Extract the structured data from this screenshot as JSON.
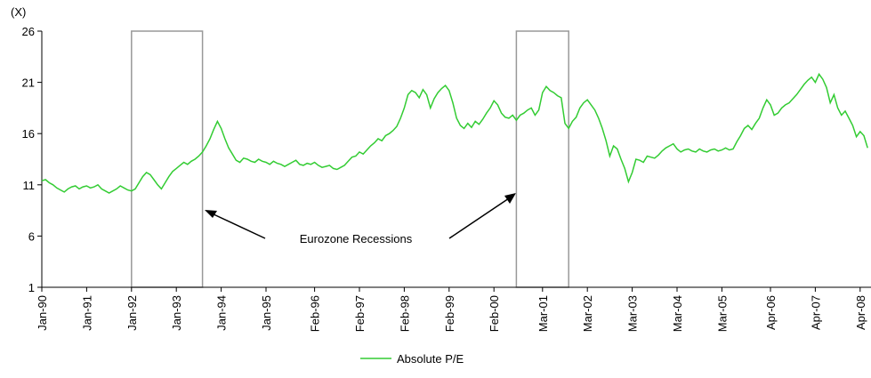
{
  "chart_data": {
    "type": "line",
    "y_label": "(X)",
    "annotation": "Eurozone Recessions",
    "x": [
      "Jan-90",
      "Feb-90",
      "Mar-90",
      "Apr-90",
      "May-90",
      "Jun-90",
      "Jul-90",
      "Aug-90",
      "Sep-90",
      "Oct-90",
      "Nov-90",
      "Dec-90",
      "Jan-91",
      "Feb-91",
      "Mar-91",
      "Apr-91",
      "May-91",
      "Jun-91",
      "Jul-91",
      "Aug-91",
      "Sep-91",
      "Oct-91",
      "Nov-91",
      "Dec-91",
      "Jan-92",
      "Feb-92",
      "Mar-92",
      "Apr-92",
      "May-92",
      "Jun-92",
      "Jul-92",
      "Aug-92",
      "Sep-92",
      "Oct-92",
      "Nov-92",
      "Dec-92",
      "Jan-93",
      "Feb-93",
      "Mar-93",
      "Apr-93",
      "May-93",
      "Jun-93",
      "Jul-93",
      "Aug-93",
      "Sep-93",
      "Oct-93",
      "Nov-93",
      "Dec-93",
      "Jan-94",
      "Feb-94",
      "Mar-94",
      "Apr-94",
      "May-94",
      "Jun-94",
      "Jul-94",
      "Aug-94",
      "Sep-94",
      "Oct-94",
      "Nov-94",
      "Dec-94",
      "Jan-95",
      "Feb-95",
      "Mar-95",
      "Apr-95",
      "May-95",
      "Jun-95",
      "Jul-95",
      "Aug-95",
      "Sep-95",
      "Oct-95",
      "Nov-95",
      "Dec-95",
      "Jan-96",
      "Feb-96",
      "Mar-96",
      "Apr-96",
      "May-96",
      "Jun-96",
      "Jul-96",
      "Aug-96",
      "Sep-96",
      "Oct-96",
      "Nov-96",
      "Dec-96",
      "Jan-97",
      "Feb-97",
      "Mar-97",
      "Apr-97",
      "May-97",
      "Jun-97",
      "Jul-97",
      "Aug-97",
      "Sep-97",
      "Oct-97",
      "Nov-97",
      "Dec-97",
      "Jan-98",
      "Feb-98",
      "Mar-98",
      "Apr-98",
      "May-98",
      "Jun-98",
      "Jul-98",
      "Aug-98",
      "Sep-98",
      "Oct-98",
      "Nov-98",
      "Dec-98",
      "Jan-99",
      "Feb-99",
      "Mar-99",
      "Apr-99",
      "May-99",
      "Jun-99",
      "Jul-99",
      "Aug-99",
      "Sep-99",
      "Oct-99",
      "Nov-99",
      "Dec-99",
      "Jan-00",
      "Feb-00",
      "Mar-00",
      "Apr-00",
      "May-00",
      "Jun-00",
      "Jul-00",
      "Aug-00",
      "Sep-00",
      "Oct-00",
      "Nov-00",
      "Dec-00",
      "Jan-01",
      "Feb-01",
      "Mar-01",
      "Apr-01",
      "May-01",
      "Jun-01",
      "Jul-01",
      "Aug-01",
      "Sep-01",
      "Oct-01",
      "Nov-01",
      "Dec-01",
      "Jan-02",
      "Feb-02",
      "Mar-02",
      "Apr-02",
      "May-02",
      "Jun-02",
      "Jul-02",
      "Aug-02",
      "Sep-02",
      "Oct-02",
      "Nov-02",
      "Dec-02",
      "Jan-03",
      "Feb-03",
      "Mar-03",
      "Apr-03",
      "May-03",
      "Jun-03",
      "Jul-03",
      "Aug-03",
      "Sep-03",
      "Oct-03",
      "Nov-03",
      "Dec-03",
      "Jan-04",
      "Feb-04",
      "Mar-04",
      "Apr-04",
      "May-04",
      "Jun-04",
      "Jul-04",
      "Aug-04",
      "Sep-04",
      "Oct-04",
      "Nov-04",
      "Dec-04",
      "Jan-05",
      "Feb-05",
      "Mar-05",
      "Apr-05",
      "May-05",
      "Jun-05",
      "Jul-05",
      "Aug-05",
      "Sep-05",
      "Oct-05",
      "Nov-05",
      "Dec-05",
      "Jan-06",
      "Feb-06",
      "Mar-06",
      "Apr-06",
      "May-06",
      "Jun-06",
      "Jul-06",
      "Aug-06",
      "Sep-06",
      "Oct-06",
      "Nov-06",
      "Dec-06",
      "Jan-07",
      "Feb-07",
      "Mar-07",
      "Apr-07",
      "May-07",
      "Jun-07",
      "Jul-07",
      "Aug-07",
      "Sep-07",
      "Oct-07",
      "Nov-07",
      "Dec-07",
      "Jan-08",
      "Feb-08",
      "Mar-08",
      "Apr-08",
      "May-08",
      "Jun-08"
    ],
    "series": [
      {
        "name": "Absolute P/E",
        "color": "#33cc33",
        "values": [
          11.4,
          11.5,
          11.2,
          11.0,
          10.7,
          10.5,
          10.3,
          10.6,
          10.8,
          10.9,
          10.6,
          10.8,
          10.9,
          10.7,
          10.8,
          11.0,
          10.6,
          10.4,
          10.2,
          10.4,
          10.6,
          10.9,
          10.7,
          10.5,
          10.4,
          10.6,
          11.2,
          11.8,
          12.2,
          12.0,
          11.5,
          11.0,
          10.6,
          11.2,
          11.8,
          12.3,
          12.6,
          12.9,
          13.2,
          13.0,
          13.3,
          13.5,
          13.8,
          14.2,
          14.8,
          15.5,
          16.4,
          17.2,
          16.5,
          15.5,
          14.6,
          14.0,
          13.4,
          13.2,
          13.6,
          13.5,
          13.3,
          13.2,
          13.5,
          13.3,
          13.2,
          13.0,
          13.3,
          13.1,
          13.0,
          12.8,
          13.0,
          13.2,
          13.4,
          13.0,
          12.9,
          13.1,
          13.0,
          13.2,
          12.9,
          12.7,
          12.8,
          12.9,
          12.6,
          12.5,
          12.7,
          12.9,
          13.3,
          13.7,
          13.8,
          14.2,
          14.0,
          14.4,
          14.8,
          15.1,
          15.5,
          15.3,
          15.8,
          16.0,
          16.3,
          16.7,
          17.5,
          18.5,
          19.8,
          20.2,
          20.0,
          19.5,
          20.3,
          19.8,
          18.5,
          19.4,
          20.0,
          20.4,
          20.7,
          20.2,
          19.0,
          17.5,
          16.8,
          16.5,
          17.0,
          16.6,
          17.2,
          16.9,
          17.4,
          18.0,
          18.5,
          19.2,
          18.8,
          18.0,
          17.6,
          17.5,
          17.8,
          17.3,
          17.8,
          18.0,
          18.3,
          18.5,
          17.8,
          18.3,
          20.0,
          20.6,
          20.2,
          20.0,
          19.7,
          19.5,
          17.0,
          16.5,
          17.2,
          17.6,
          18.5,
          19.0,
          19.3,
          18.8,
          18.3,
          17.5,
          16.5,
          15.3,
          13.8,
          14.8,
          14.5,
          13.5,
          12.6,
          11.3,
          12.2,
          13.5,
          13.4,
          13.2,
          13.8,
          13.7,
          13.6,
          13.9,
          14.3,
          14.6,
          14.8,
          15.0,
          14.5,
          14.2,
          14.4,
          14.5,
          14.3,
          14.2,
          14.5,
          14.3,
          14.2,
          14.4,
          14.5,
          14.3,
          14.4,
          14.6,
          14.4,
          14.5,
          15.2,
          15.8,
          16.5,
          16.8,
          16.4,
          17.0,
          17.5,
          18.5,
          19.3,
          18.8,
          17.8,
          18.0,
          18.5,
          18.8,
          19.0,
          19.4,
          19.8,
          20.3,
          20.8,
          21.2,
          21.5,
          21.0,
          21.8,
          21.3,
          20.5,
          19.0,
          19.8,
          18.5,
          17.8,
          18.2,
          17.5,
          16.8,
          15.7,
          16.2,
          15.8,
          14.6
        ]
      }
    ],
    "xticks": [
      "Jan-90",
      "Jan-91",
      "Jan-92",
      "Jan-93",
      "Jan-94",
      "Jan-95",
      "Feb-96",
      "Feb-97",
      "Feb-98",
      "Feb-99",
      "Feb-00",
      "Mar-01",
      "Mar-02",
      "Mar-03",
      "Mar-04",
      "Mar-05",
      "Apr-06",
      "Apr-07",
      "Apr-08"
    ],
    "regions": [
      {
        "start": "Jan-92",
        "end": "Aug-93"
      },
      {
        "start": "Aug-00",
        "end": "Oct-01"
      }
    ],
    "ylim": [
      1,
      26
    ],
    "yticks": [
      1,
      6,
      11,
      16,
      21,
      26
    ]
  }
}
